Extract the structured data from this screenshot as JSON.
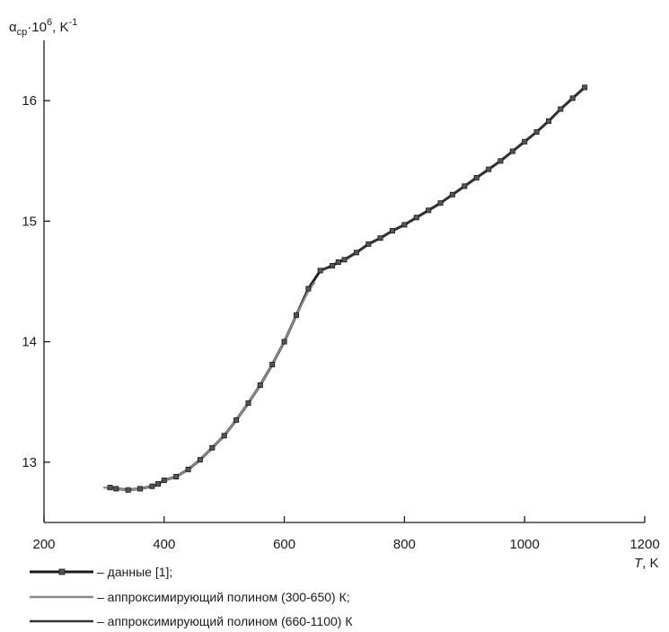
{
  "chart_data": {
    "type": "line",
    "title": "",
    "ylabel": {
      "base": "α",
      "sub": "ср",
      "mid": "·10",
      "sup": "6",
      "unit": ", K",
      "unit_sup": "-1"
    },
    "xlabel": {
      "var": "T",
      "unit": ", K"
    },
    "xlim": [
      200,
      1200
    ],
    "ylim": [
      12.5,
      16.5
    ],
    "x_ticks": [
      200,
      400,
      600,
      800,
      1000,
      1200
    ],
    "y_ticks": [
      13,
      14,
      15,
      16
    ],
    "grid": false,
    "legend_position": "bottom-left",
    "series": [
      {
        "name": "– данные [1];",
        "style": "data",
        "color": "#222222",
        "x": [
          310,
          320,
          340,
          360,
          380,
          390,
          400,
          420,
          440,
          460,
          480,
          500,
          520,
          540,
          560,
          580,
          600,
          620,
          640,
          660,
          680,
          690,
          700,
          720,
          740,
          760,
          780,
          800,
          820,
          840,
          860,
          880,
          900,
          920,
          940,
          960,
          980,
          1000,
          1020,
          1040,
          1060,
          1080,
          1100
        ],
        "y": [
          12.79,
          12.78,
          12.77,
          12.78,
          12.8,
          12.82,
          12.85,
          12.88,
          12.94,
          13.02,
          13.12,
          13.22,
          13.35,
          13.49,
          13.64,
          13.81,
          14.0,
          14.22,
          14.44,
          14.59,
          14.63,
          14.66,
          14.68,
          14.74,
          14.81,
          14.86,
          14.92,
          14.97,
          15.03,
          15.09,
          15.15,
          15.22,
          15.29,
          15.36,
          15.43,
          15.5,
          15.58,
          15.66,
          15.74,
          15.83,
          15.93,
          16.02,
          16.11
        ]
      },
      {
        "name": "– аппроксимирующий полином (300-650) К;",
        "style": "fit",
        "color": "#8a8a8a",
        "x": [
          300,
          320,
          340,
          360,
          380,
          400,
          420,
          440,
          460,
          480,
          500,
          520,
          540,
          560,
          580,
          600,
          620,
          640,
          650
        ],
        "y": [
          12.79,
          12.78,
          12.77,
          12.78,
          12.8,
          12.85,
          12.88,
          12.94,
          13.02,
          13.12,
          13.22,
          13.35,
          13.49,
          13.64,
          13.81,
          14.0,
          14.22,
          14.42,
          14.49
        ]
      },
      {
        "name": "– аппроксимирующий полином (660-1100) К",
        "style": "fit",
        "color": "#333333",
        "x": [
          660,
          680,
          700,
          720,
          740,
          760,
          780,
          800,
          820,
          840,
          860,
          880,
          900,
          920,
          940,
          960,
          980,
          1000,
          1020,
          1040,
          1060,
          1080,
          1100
        ],
        "y": [
          14.59,
          14.63,
          14.68,
          14.74,
          14.81,
          14.86,
          14.92,
          14.97,
          15.03,
          15.09,
          15.15,
          15.22,
          15.29,
          15.36,
          15.43,
          15.5,
          15.58,
          15.66,
          15.74,
          15.83,
          15.93,
          16.02,
          16.11
        ]
      }
    ]
  }
}
